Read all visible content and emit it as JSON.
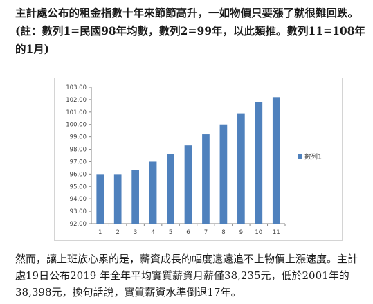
{
  "article": {
    "intro": "主計處公布的租金指數十年來節節高升，一如物價只要漲了就很難回跌。(註：數列1=民國98年均數，數列2=99年，以此類推。數列11=108年的1月)",
    "outro": "然而，讓上班族心累的是，薪資成長的幅度遠遠追不上物價上漲速度。主計處19日公布2019 年全年平均實質薪資月薪僅38,235元，低於2001年的38,398元，換句話說，實質薪資水準倒退17年。"
  },
  "chart_data": {
    "type": "bar",
    "categories": [
      "1",
      "2",
      "3",
      "4",
      "5",
      "6",
      "7",
      "8",
      "9",
      "10",
      "11"
    ],
    "series": [
      {
        "name": "數列1",
        "values": [
          96.0,
          96.0,
          96.3,
          97.0,
          97.6,
          98.3,
          99.2,
          100.0,
          100.9,
          101.8,
          102.2
        ],
        "color": "#4f81bd"
      }
    ],
    "ylim": [
      92.0,
      103.0
    ],
    "yticks": [
      "92.00",
      "93.00",
      "94.00",
      "95.00",
      "96.00",
      "97.00",
      "98.00",
      "99.00",
      "100.00",
      "101.00",
      "102.00",
      "103.00"
    ],
    "grid": false,
    "legend_position": "right",
    "title": "",
    "xlabel": "",
    "ylabel": ""
  }
}
